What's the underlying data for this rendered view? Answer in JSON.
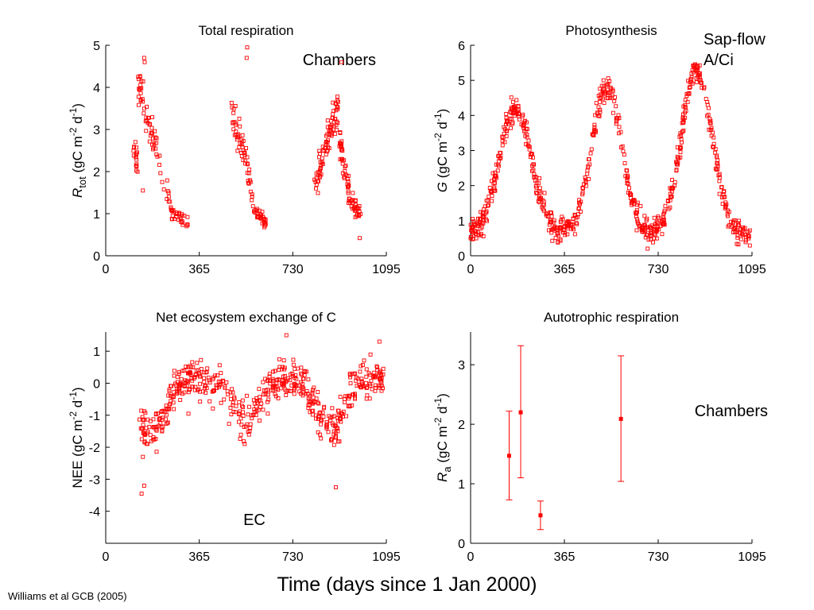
{
  "figure": {
    "xlabel": "Time (days since 1 Jan 2000)",
    "citation": "Williams et al GCB (2005)",
    "marker_color": "#ff0000",
    "axis_color": "#000000"
  },
  "chart_data": [
    {
      "id": "total-respiration",
      "type": "scatter",
      "title": "Total respiration",
      "ylabel": {
        "symbol": "R",
        "sub": "tot",
        "rest": " (gC m",
        "exp1": "-2",
        "mid": " d",
        "exp2": "-1",
        "end": ")"
      },
      "xlim": [
        0,
        1095
      ],
      "ylim": [
        0,
        5
      ],
      "xticks": [
        0,
        365,
        730,
        1095
      ],
      "yticks": [
        0,
        1,
        2,
        3,
        4,
        5
      ],
      "annotations": [
        {
          "text": "Chambers",
          "pos": "top-right"
        }
      ],
      "series": [
        {
          "marker": "open-square",
          "gen": {
            "segments": [
              {
                "x0": 108,
                "x1": 125,
                "n": 16,
                "y0": 2.6,
                "y1": 2.0,
                "sd": 0.4
              },
              {
                "x0": 126,
                "x1": 150,
                "n": 20,
                "y0": 4.2,
                "y1": 3.5,
                "sd": 0.45
              },
              {
                "x0": 150,
                "x1": 200,
                "n": 30,
                "y0": 3.5,
                "y1": 2.5,
                "sd": 0.35
              },
              {
                "x0": 200,
                "x1": 260,
                "n": 20,
                "y0": 2.3,
                "y1": 1.0,
                "sd": 0.3
              },
              {
                "x0": 260,
                "x1": 320,
                "n": 24,
                "y0": 1.0,
                "y1": 0.8,
                "sd": 0.14
              },
              {
                "x0": 490,
                "x1": 535,
                "n": 32,
                "y0": 3.4,
                "y1": 2.6,
                "sd": 0.3
              },
              {
                "x0": 535,
                "x1": 580,
                "n": 26,
                "y0": 2.6,
                "y1": 1.3,
                "sd": 0.3
              },
              {
                "x0": 580,
                "x1": 625,
                "n": 34,
                "y0": 1.1,
                "y1": 0.8,
                "sd": 0.15
              },
              {
                "x0": 810,
                "x1": 860,
                "n": 34,
                "y0": 1.5,
                "y1": 2.6,
                "sd": 0.3
              },
              {
                "x0": 860,
                "x1": 910,
                "n": 46,
                "y0": 2.8,
                "y1": 3.5,
                "sd": 0.4
              },
              {
                "x0": 910,
                "x1": 950,
                "n": 40,
                "y0": 2.8,
                "y1": 1.5,
                "sd": 0.35
              },
              {
                "x0": 950,
                "x1": 995,
                "n": 30,
                "y0": 1.3,
                "y1": 1.0,
                "sd": 0.2
              }
            ],
            "extra": [
              [
                152,
                4.6
              ],
              [
                150,
                4.7
              ],
              [
                552,
                4.95
              ],
              [
                550,
                4.7
              ],
              [
                920,
                4.6
              ],
              [
                991,
                0.42
              ],
              [
                145,
                1.55
              ]
            ]
          }
        }
      ]
    },
    {
      "id": "photosynthesis",
      "type": "scatter",
      "title": "Photosynthesis",
      "ylabel": {
        "symbol": "G",
        "sub": "",
        "rest": " (gC m",
        "exp1": "-2",
        "mid": " d",
        "exp2": "-1",
        "end": ")"
      },
      "xlim": [
        0,
        1095
      ],
      "ylim": [
        0,
        6
      ],
      "xticks": [
        0,
        365,
        730,
        1095
      ],
      "yticks": [
        0,
        1,
        2,
        3,
        4,
        5,
        6
      ],
      "annotations": [
        {
          "lines": [
            "Sap-flow",
            "A/Ci"
          ],
          "pos": "top-right-outside"
        }
      ],
      "series": [
        {
          "marker": "open-square",
          "gen": {
            "seasonal": {
              "x0": 0,
              "x1": 1095,
              "n": 720,
              "base": 0.6,
              "peaks": [
                {
                  "c": 175,
                  "h": 3.6,
                  "w": 62
                },
                {
                  "c": 530,
                  "h": 4.2,
                  "w": 58
                },
                {
                  "c": 880,
                  "h": 4.7,
                  "w": 60
                }
              ],
              "sd": 0.3
            }
          }
        }
      ]
    },
    {
      "id": "net-ecosystem-exchange",
      "type": "scatter",
      "title": "Net ecosystem exchange of C",
      "ylabel": {
        "symbol": "NEE",
        "sub": "",
        "rest": " (gC m",
        "exp1": "-2",
        "mid": " d",
        "exp2": "-1",
        "end": ")",
        "plain": true
      },
      "xlim": [
        0,
        1095
      ],
      "ylim": [
        -5,
        1.6
      ],
      "xticks": [
        0,
        365,
        730,
        1095
      ],
      "yticks": [
        -4,
        -3,
        -2,
        -1,
        0,
        1
      ],
      "annotations": [
        {
          "text": "EC",
          "pos": "bottom-center"
        }
      ],
      "series": [
        {
          "marker": "open-square",
          "gen": {
            "seasonal": {
              "x0": 130,
              "x1": 1085,
              "n": 560,
              "base": 0.15,
              "peaks": [
                {
                  "c": 175,
                  "h": -1.8,
                  "w": 55
                },
                {
                  "c": 545,
                  "h": -1.3,
                  "w": 55
                },
                {
                  "c": 875,
                  "h": -1.55,
                  "w": 55
                }
              ],
              "sd": 0.5
            },
            "extra": [
              [
                140,
                -3.45
              ],
              [
                150,
                -3.2
              ],
              [
                145,
                -2.3
              ],
              [
                898,
                -3.25
              ],
              [
                705,
                1.5
              ],
              [
                1068,
                1.3
              ]
            ]
          }
        }
      ]
    },
    {
      "id": "autotrophic-respiration",
      "type": "scatter",
      "title": "Autotrophic respiration",
      "ylabel": {
        "symbol": "R",
        "sub": "a",
        "rest": " (gC m",
        "exp1": "-2",
        "mid": " d",
        "exp2": "-1",
        "end": ")"
      },
      "xlim": [
        0,
        1095
      ],
      "ylim": [
        0,
        3.55
      ],
      "xticks": [
        0,
        365,
        730,
        1095
      ],
      "yticks": [
        0,
        1,
        2,
        3
      ],
      "annotations": [
        {
          "text": "Chambers",
          "pos": "middle-right"
        }
      ],
      "series": [
        {
          "marker": "filled-square-errorbar",
          "points": [
            {
              "x": 150,
              "y": 1.47,
              "lo": 0.73,
              "hi": 2.22
            },
            {
              "x": 195,
              "y": 2.2,
              "lo": 1.1,
              "hi": 3.32
            },
            {
              "x": 272,
              "y": 0.47,
              "lo": 0.23,
              "hi": 0.71
            },
            {
              "x": 585,
              "y": 2.09,
              "lo": 1.04,
              "hi": 3.15
            }
          ]
        }
      ]
    }
  ]
}
